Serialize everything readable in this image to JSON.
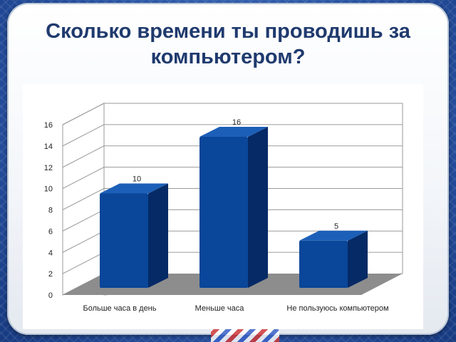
{
  "slide": {
    "title": "Сколько времени ты проводишь за компьютером?"
  },
  "colors": {
    "bar_front": "#0a4699",
    "bar_side": "#052a66",
    "bar_top": "#1c5fb8",
    "floor": "#8d8d8d",
    "gridline": "#9a9a9a"
  },
  "chart_data": {
    "type": "bar",
    "categories": [
      "Больше часа в день",
      "Меньше часа",
      "Не пользуюсь компьютером"
    ],
    "values": [
      10,
      16,
      5
    ],
    "data_labels": [
      "10",
      "16",
      "5"
    ],
    "y_ticks": [
      "0",
      "2",
      "4",
      "6",
      "8",
      "10",
      "12",
      "14",
      "16"
    ],
    "ylim": [
      0,
      16
    ],
    "grid": true,
    "three_d": true,
    "legend": "none",
    "xlabel": "",
    "ylabel": ""
  }
}
